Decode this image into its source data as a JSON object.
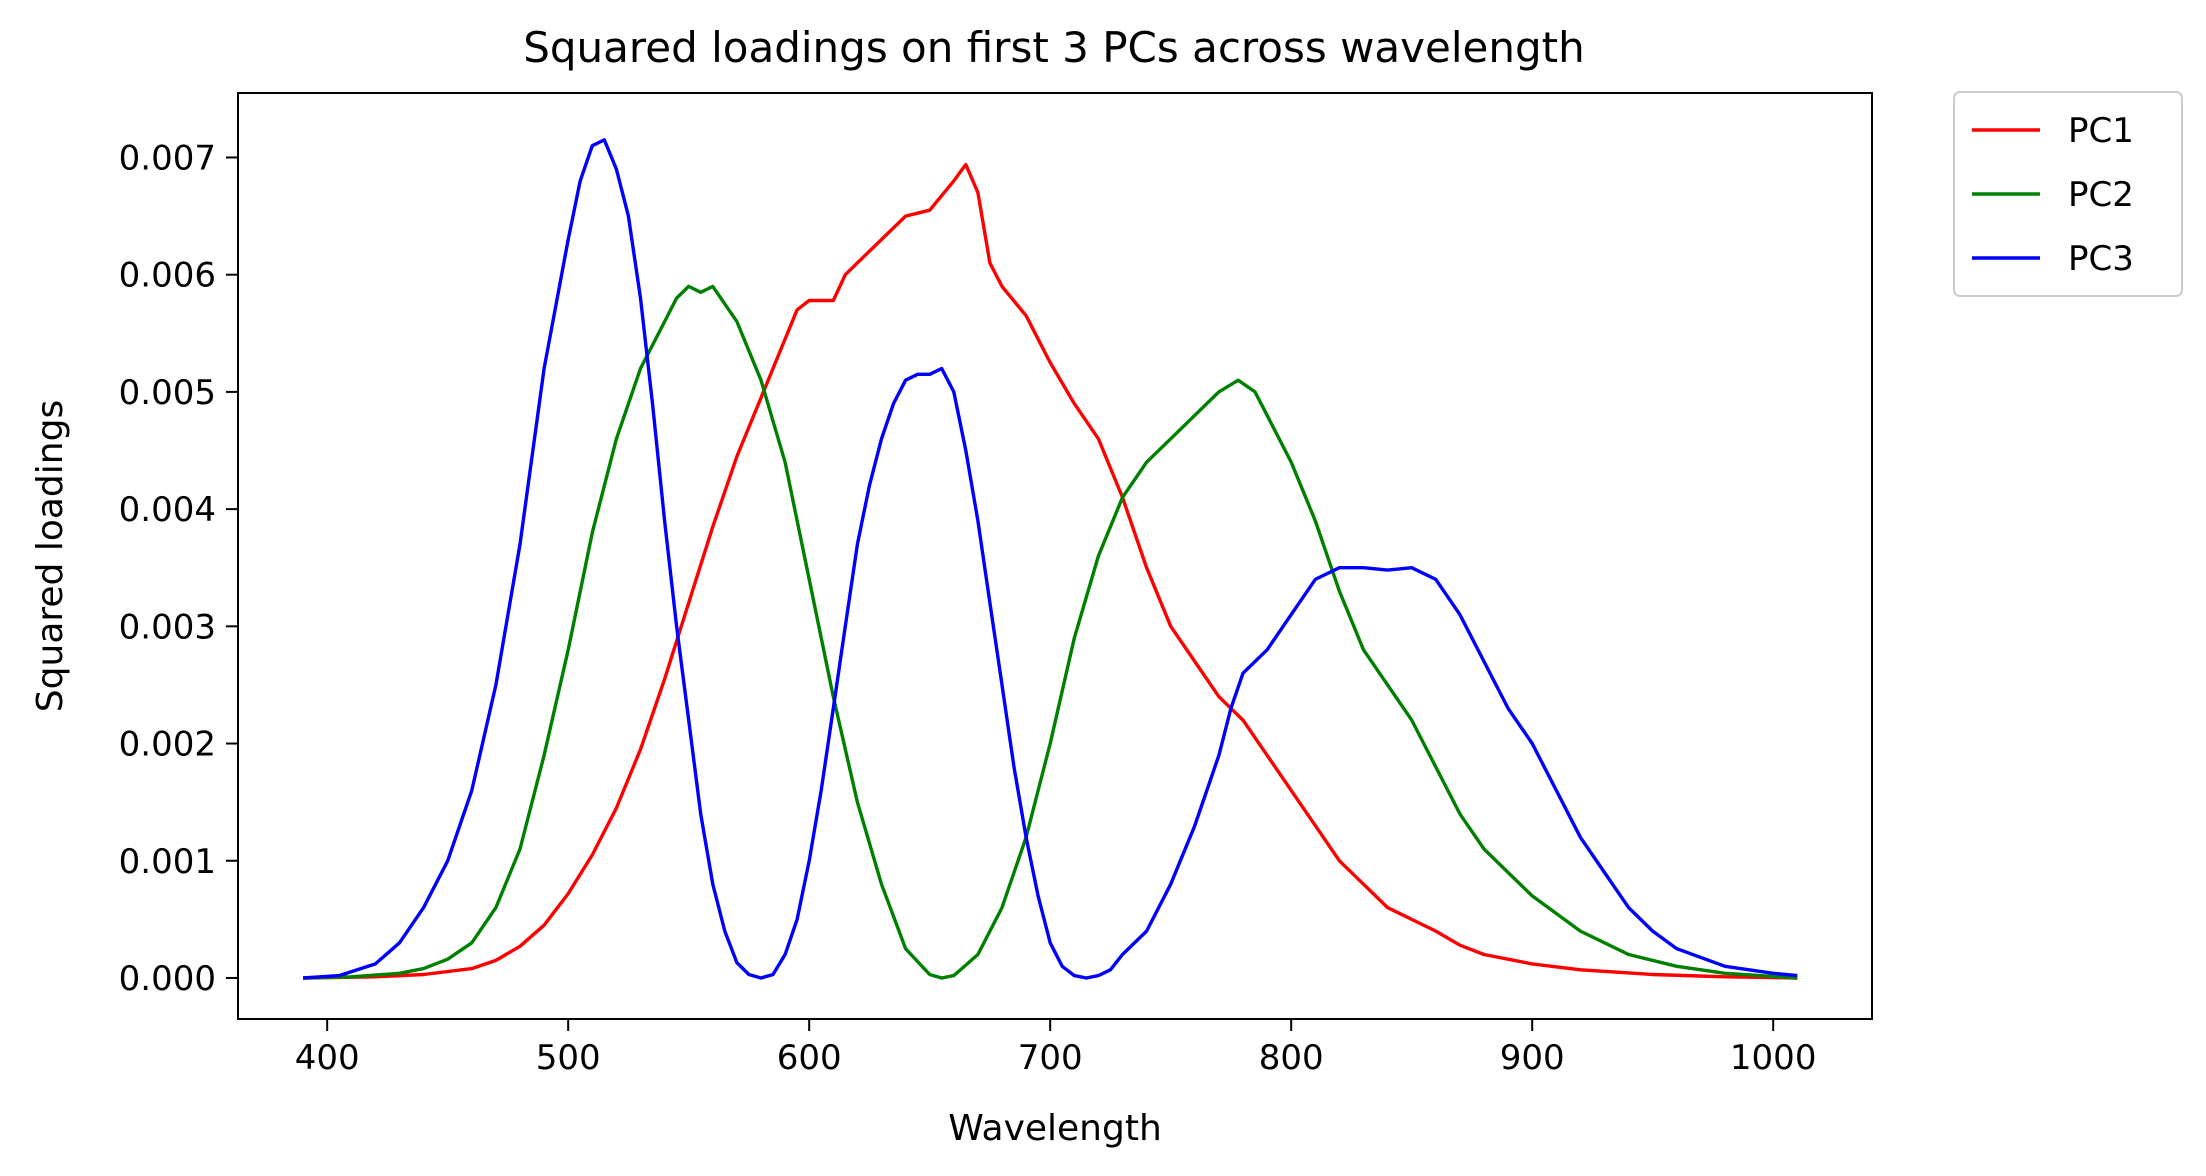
{
  "chart_data": {
    "type": "line",
    "title": "Squared loadings on first 3 PCs across wavelength",
    "xlabel": "Wavelength",
    "ylabel": "Squared loadings",
    "xlim": [
      363,
      1041
    ],
    "ylim": [
      -0.00035,
      0.00755
    ],
    "xticks": [
      400,
      500,
      600,
      700,
      800,
      900,
      1000
    ],
    "xtick_labels": [
      "400",
      "500",
      "600",
      "700",
      "800",
      "900",
      "1000"
    ],
    "yticks": [
      0,
      0.001,
      0.002,
      0.003,
      0.004,
      0.005,
      0.006,
      0.007
    ],
    "ytick_labels": [
      "0.000",
      "0.001",
      "0.002",
      "0.003",
      "0.004",
      "0.005",
      "0.006",
      "0.007"
    ],
    "grid": false,
    "legend_position": "outside-top-right",
    "series": [
      {
        "name": "PC1",
        "color": "#ff0000",
        "points": [
          [
            390,
            0
          ],
          [
            420,
            1e-05
          ],
          [
            440,
            3e-05
          ],
          [
            460,
            8e-05
          ],
          [
            470,
            0.00015
          ],
          [
            480,
            0.00027
          ],
          [
            490,
            0.00045
          ],
          [
            500,
            0.00072
          ],
          [
            510,
            0.00105
          ],
          [
            520,
            0.00145
          ],
          [
            530,
            0.00195
          ],
          [
            540,
            0.00255
          ],
          [
            550,
            0.0032
          ],
          [
            560,
            0.00385
          ],
          [
            570,
            0.00445
          ],
          [
            580,
            0.00495
          ],
          [
            585,
            0.0052
          ],
          [
            595,
            0.0057
          ],
          [
            600,
            0.00578
          ],
          [
            610,
            0.00578
          ],
          [
            615,
            0.006
          ],
          [
            625,
            0.0062
          ],
          [
            630,
            0.0063
          ],
          [
            640,
            0.0065
          ],
          [
            650,
            0.00655
          ],
          [
            660,
            0.0068
          ],
          [
            665,
            0.00694
          ],
          [
            670,
            0.0067
          ],
          [
            675,
            0.0061
          ],
          [
            680,
            0.0059
          ],
          [
            690,
            0.00565
          ],
          [
            700,
            0.00525
          ],
          [
            710,
            0.0049
          ],
          [
            720,
            0.0046
          ],
          [
            730,
            0.0041
          ],
          [
            740,
            0.0035
          ],
          [
            750,
            0.003
          ],
          [
            760,
            0.0027
          ],
          [
            770,
            0.0024
          ],
          [
            780,
            0.0022
          ],
          [
            790,
            0.0019
          ],
          [
            800,
            0.0016
          ],
          [
            810,
            0.0013
          ],
          [
            820,
            0.001
          ],
          [
            830,
            0.0008
          ],
          [
            840,
            0.0006
          ],
          [
            850,
            0.0005
          ],
          [
            860,
            0.0004
          ],
          [
            870,
            0.00028
          ],
          [
            880,
            0.0002
          ],
          [
            900,
            0.00012
          ],
          [
            920,
            7e-05
          ],
          [
            950,
            3e-05
          ],
          [
            980,
            1e-05
          ],
          [
            1010,
            0
          ]
        ]
      },
      {
        "name": "PC2",
        "color": "#008000",
        "points": [
          [
            390,
            0
          ],
          [
            410,
            1e-05
          ],
          [
            430,
            4e-05
          ],
          [
            440,
            8e-05
          ],
          [
            450,
            0.00016
          ],
          [
            460,
            0.0003
          ],
          [
            470,
            0.0006
          ],
          [
            480,
            0.0011
          ],
          [
            490,
            0.0019
          ],
          [
            500,
            0.0028
          ],
          [
            510,
            0.0038
          ],
          [
            520,
            0.0046
          ],
          [
            530,
            0.0052
          ],
          [
            540,
            0.0056
          ],
          [
            545,
            0.0058
          ],
          [
            550,
            0.0059
          ],
          [
            555,
            0.00585
          ],
          [
            560,
            0.0059
          ],
          [
            570,
            0.0056
          ],
          [
            580,
            0.0051
          ],
          [
            590,
            0.0044
          ],
          [
            600,
            0.0034
          ],
          [
            610,
            0.0024
          ],
          [
            620,
            0.0015
          ],
          [
            630,
            0.0008
          ],
          [
            640,
            0.00025
          ],
          [
            650,
            3e-05
          ],
          [
            655,
            0
          ],
          [
            660,
            2e-05
          ],
          [
            670,
            0.0002
          ],
          [
            680,
            0.0006
          ],
          [
            690,
            0.0012
          ],
          [
            700,
            0.002
          ],
          [
            710,
            0.0029
          ],
          [
            720,
            0.0036
          ],
          [
            730,
            0.0041
          ],
          [
            740,
            0.0044
          ],
          [
            750,
            0.0046
          ],
          [
            760,
            0.0048
          ],
          [
            770,
            0.005
          ],
          [
            778,
            0.0051
          ],
          [
            785,
            0.005
          ],
          [
            790,
            0.0048
          ],
          [
            800,
            0.0044
          ],
          [
            810,
            0.0039
          ],
          [
            820,
            0.0033
          ],
          [
            830,
            0.0028
          ],
          [
            840,
            0.0025
          ],
          [
            850,
            0.0022
          ],
          [
            860,
            0.0018
          ],
          [
            870,
            0.0014
          ],
          [
            880,
            0.0011
          ],
          [
            890,
            0.0009
          ],
          [
            900,
            0.0007
          ],
          [
            920,
            0.0004
          ],
          [
            940,
            0.0002
          ],
          [
            960,
            0.0001
          ],
          [
            980,
            4e-05
          ],
          [
            1010,
            0
          ]
        ]
      },
      {
        "name": "PC3",
        "color": "#0000ff",
        "points": [
          [
            390,
            0
          ],
          [
            405,
            2e-05
          ],
          [
            420,
            0.00012
          ],
          [
            430,
            0.0003
          ],
          [
            440,
            0.0006
          ],
          [
            450,
            0.001
          ],
          [
            460,
            0.0016
          ],
          [
            470,
            0.0025
          ],
          [
            480,
            0.0037
          ],
          [
            490,
            0.0052
          ],
          [
            500,
            0.0063
          ],
          [
            505,
            0.0068
          ],
          [
            510,
            0.0071
          ],
          [
            515,
            0.00715
          ],
          [
            520,
            0.0069
          ],
          [
            525,
            0.0065
          ],
          [
            530,
            0.0058
          ],
          [
            535,
            0.0049
          ],
          [
            540,
            0.0039
          ],
          [
            545,
            0.003
          ],
          [
            550,
            0.0022
          ],
          [
            555,
            0.0014
          ],
          [
            560,
            0.0008
          ],
          [
            565,
            0.0004
          ],
          [
            570,
            0.00013
          ],
          [
            575,
            3e-05
          ],
          [
            580,
            0
          ],
          [
            585,
            3e-05
          ],
          [
            590,
            0.0002
          ],
          [
            595,
            0.0005
          ],
          [
            600,
            0.001
          ],
          [
            605,
            0.0016
          ],
          [
            610,
            0.0023
          ],
          [
            615,
            0.003
          ],
          [
            620,
            0.0037
          ],
          [
            625,
            0.0042
          ],
          [
            630,
            0.0046
          ],
          [
            635,
            0.0049
          ],
          [
            640,
            0.0051
          ],
          [
            645,
            0.00515
          ],
          [
            650,
            0.00515
          ],
          [
            655,
            0.0052
          ],
          [
            660,
            0.005
          ],
          [
            665,
            0.0045
          ],
          [
            670,
            0.0039
          ],
          [
            675,
            0.0032
          ],
          [
            680,
            0.0025
          ],
          [
            685,
            0.0018
          ],
          [
            690,
            0.0012
          ],
          [
            695,
            0.0007
          ],
          [
            700,
            0.0003
          ],
          [
            705,
            0.0001
          ],
          [
            710,
            2e-05
          ],
          [
            715,
            0
          ],
          [
            720,
            2e-05
          ],
          [
            725,
            7e-05
          ],
          [
            730,
            0.0002
          ],
          [
            740,
            0.0004
          ],
          [
            750,
            0.0008
          ],
          [
            760,
            0.0013
          ],
          [
            770,
            0.0019
          ],
          [
            775,
            0.0023
          ],
          [
            780,
            0.0026
          ],
          [
            790,
            0.0028
          ],
          [
            800,
            0.0031
          ],
          [
            810,
            0.0034
          ],
          [
            820,
            0.0035
          ],
          [
            830,
            0.0035
          ],
          [
            840,
            0.00348
          ],
          [
            850,
            0.0035
          ],
          [
            860,
            0.0034
          ],
          [
            870,
            0.0031
          ],
          [
            880,
            0.0027
          ],
          [
            890,
            0.0023
          ],
          [
            900,
            0.002
          ],
          [
            910,
            0.0016
          ],
          [
            920,
            0.0012
          ],
          [
            930,
            0.0009
          ],
          [
            940,
            0.0006
          ],
          [
            950,
            0.0004
          ],
          [
            960,
            0.00025
          ],
          [
            980,
            0.0001
          ],
          [
            1000,
            4e-05
          ],
          [
            1010,
            2e-05
          ]
        ]
      }
    ]
  }
}
